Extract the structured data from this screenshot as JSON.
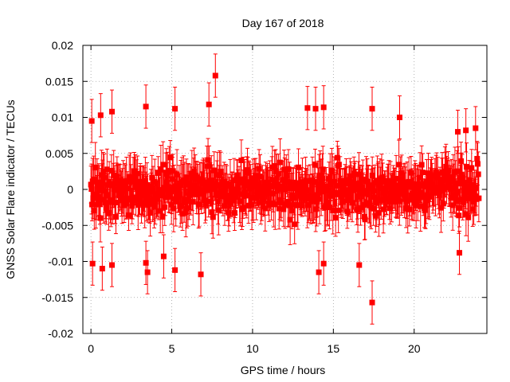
{
  "chart_data": {
    "type": "scatter",
    "title": "Day 167 of 2018",
    "xlabel": "GPS time / hours",
    "ylabel": "GNSS Solar Flare indicator / TECUs",
    "xlim": [
      -0.5,
      24.5
    ],
    "ylim": [
      -0.02,
      0.02
    ],
    "x_ticks": [
      0,
      5,
      10,
      15,
      20
    ],
    "x_tick_labels": [
      "0",
      "5",
      "10",
      "15",
      "20"
    ],
    "y_ticks": [
      -0.02,
      -0.015,
      -0.01,
      -0.005,
      0,
      0.005,
      0.01,
      0.015,
      0.02
    ],
    "y_tick_labels": [
      "-0.02",
      "-0.015",
      "-0.01",
      "-0.005",
      "0",
      "0.005",
      "0.01",
      "0.015",
      "0.02"
    ],
    "grid": true,
    "marker_color": "#ff0000",
    "series": [
      {
        "name": "indicator",
        "style": "points with error bars",
        "x_start": 0,
        "x_end": 24,
        "n_points": 700,
        "typical_spread": 0.0032,
        "typical_error": 0.0028,
        "points": [
          {
            "x": 0.05,
            "y": 0.0095,
            "err": 0.003
          },
          {
            "x": 0.1,
            "y": -0.0103,
            "err": 0.003
          },
          {
            "x": 0.6,
            "y": 0.0103,
            "err": 0.003
          },
          {
            "x": 0.7,
            "y": -0.011,
            "err": 0.003
          },
          {
            "x": 1.3,
            "y": 0.0108,
            "err": 0.003
          },
          {
            "x": 1.3,
            "y": -0.0105,
            "err": 0.003
          },
          {
            "x": 3.4,
            "y": 0.0115,
            "err": 0.003
          },
          {
            "x": 3.4,
            "y": -0.0102,
            "err": 0.003
          },
          {
            "x": 3.5,
            "y": -0.0115,
            "err": 0.003
          },
          {
            "x": 4.5,
            "y": -0.0093,
            "err": 0.003
          },
          {
            "x": 5.2,
            "y": 0.0112,
            "err": 0.003
          },
          {
            "x": 5.2,
            "y": -0.0112,
            "err": 0.003
          },
          {
            "x": 6.8,
            "y": -0.0118,
            "err": 0.003
          },
          {
            "x": 7.3,
            "y": 0.0118,
            "err": 0.003
          },
          {
            "x": 7.7,
            "y": 0.0158,
            "err": 0.003
          },
          {
            "x": 13.4,
            "y": 0.0113,
            "err": 0.003
          },
          {
            "x": 13.9,
            "y": 0.0112,
            "err": 0.003
          },
          {
            "x": 14.1,
            "y": -0.0115,
            "err": 0.003
          },
          {
            "x": 14.4,
            "y": 0.0114,
            "err": 0.003
          },
          {
            "x": 14.4,
            "y": -0.0103,
            "err": 0.003
          },
          {
            "x": 16.6,
            "y": -0.0105,
            "err": 0.003
          },
          {
            "x": 17.4,
            "y": 0.0112,
            "err": 0.003
          },
          {
            "x": 17.4,
            "y": -0.0157,
            "err": 0.003
          },
          {
            "x": 19.1,
            "y": 0.01,
            "err": 0.003
          },
          {
            "x": 22.7,
            "y": 0.008,
            "err": 0.003
          },
          {
            "x": 22.8,
            "y": -0.0088,
            "err": 0.003
          },
          {
            "x": 23.2,
            "y": 0.0082,
            "err": 0.003
          },
          {
            "x": 23.8,
            "y": 0.0085,
            "err": 0.003
          }
        ]
      }
    ]
  }
}
